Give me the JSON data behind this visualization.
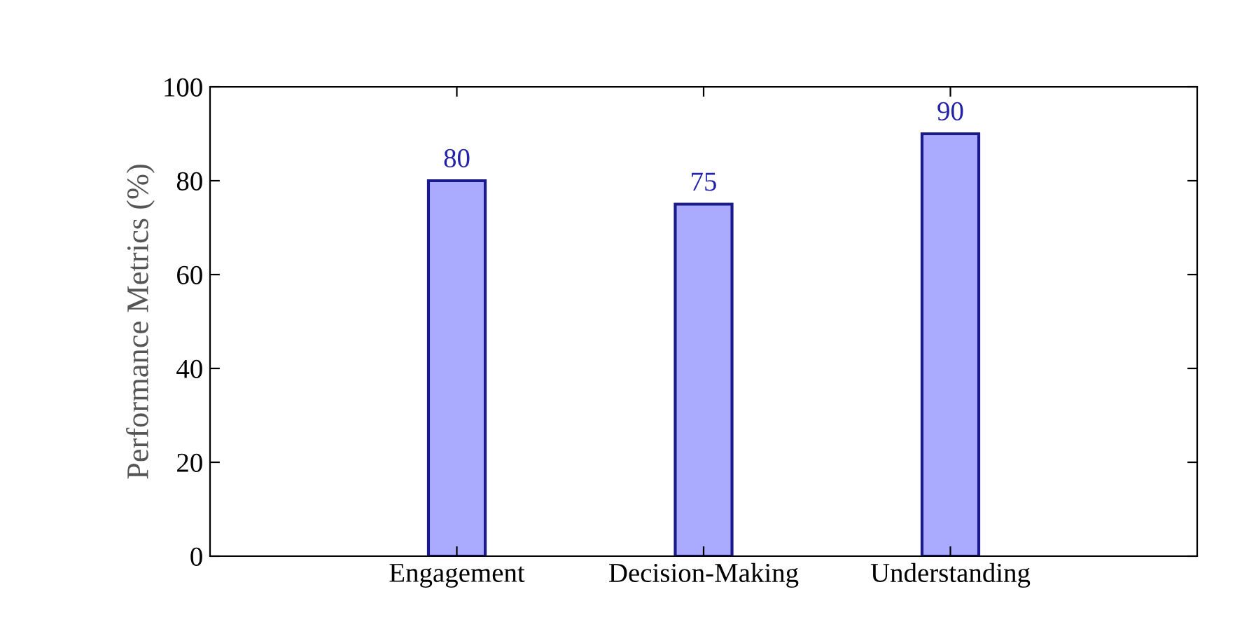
{
  "chart_data": {
    "type": "bar",
    "ylabel": "Performance Metrics (%)",
    "categories": [
      "Engagement",
      "Decision-Making",
      "Understanding"
    ],
    "values": [
      80,
      75,
      90
    ],
    "color": "#aaaaff",
    "ylim": [
      0,
      100
    ],
    "yticks": [
      0,
      20,
      40,
      60,
      80,
      100
    ],
    "data_labels": true,
    "grid": false,
    "legend": false
  }
}
